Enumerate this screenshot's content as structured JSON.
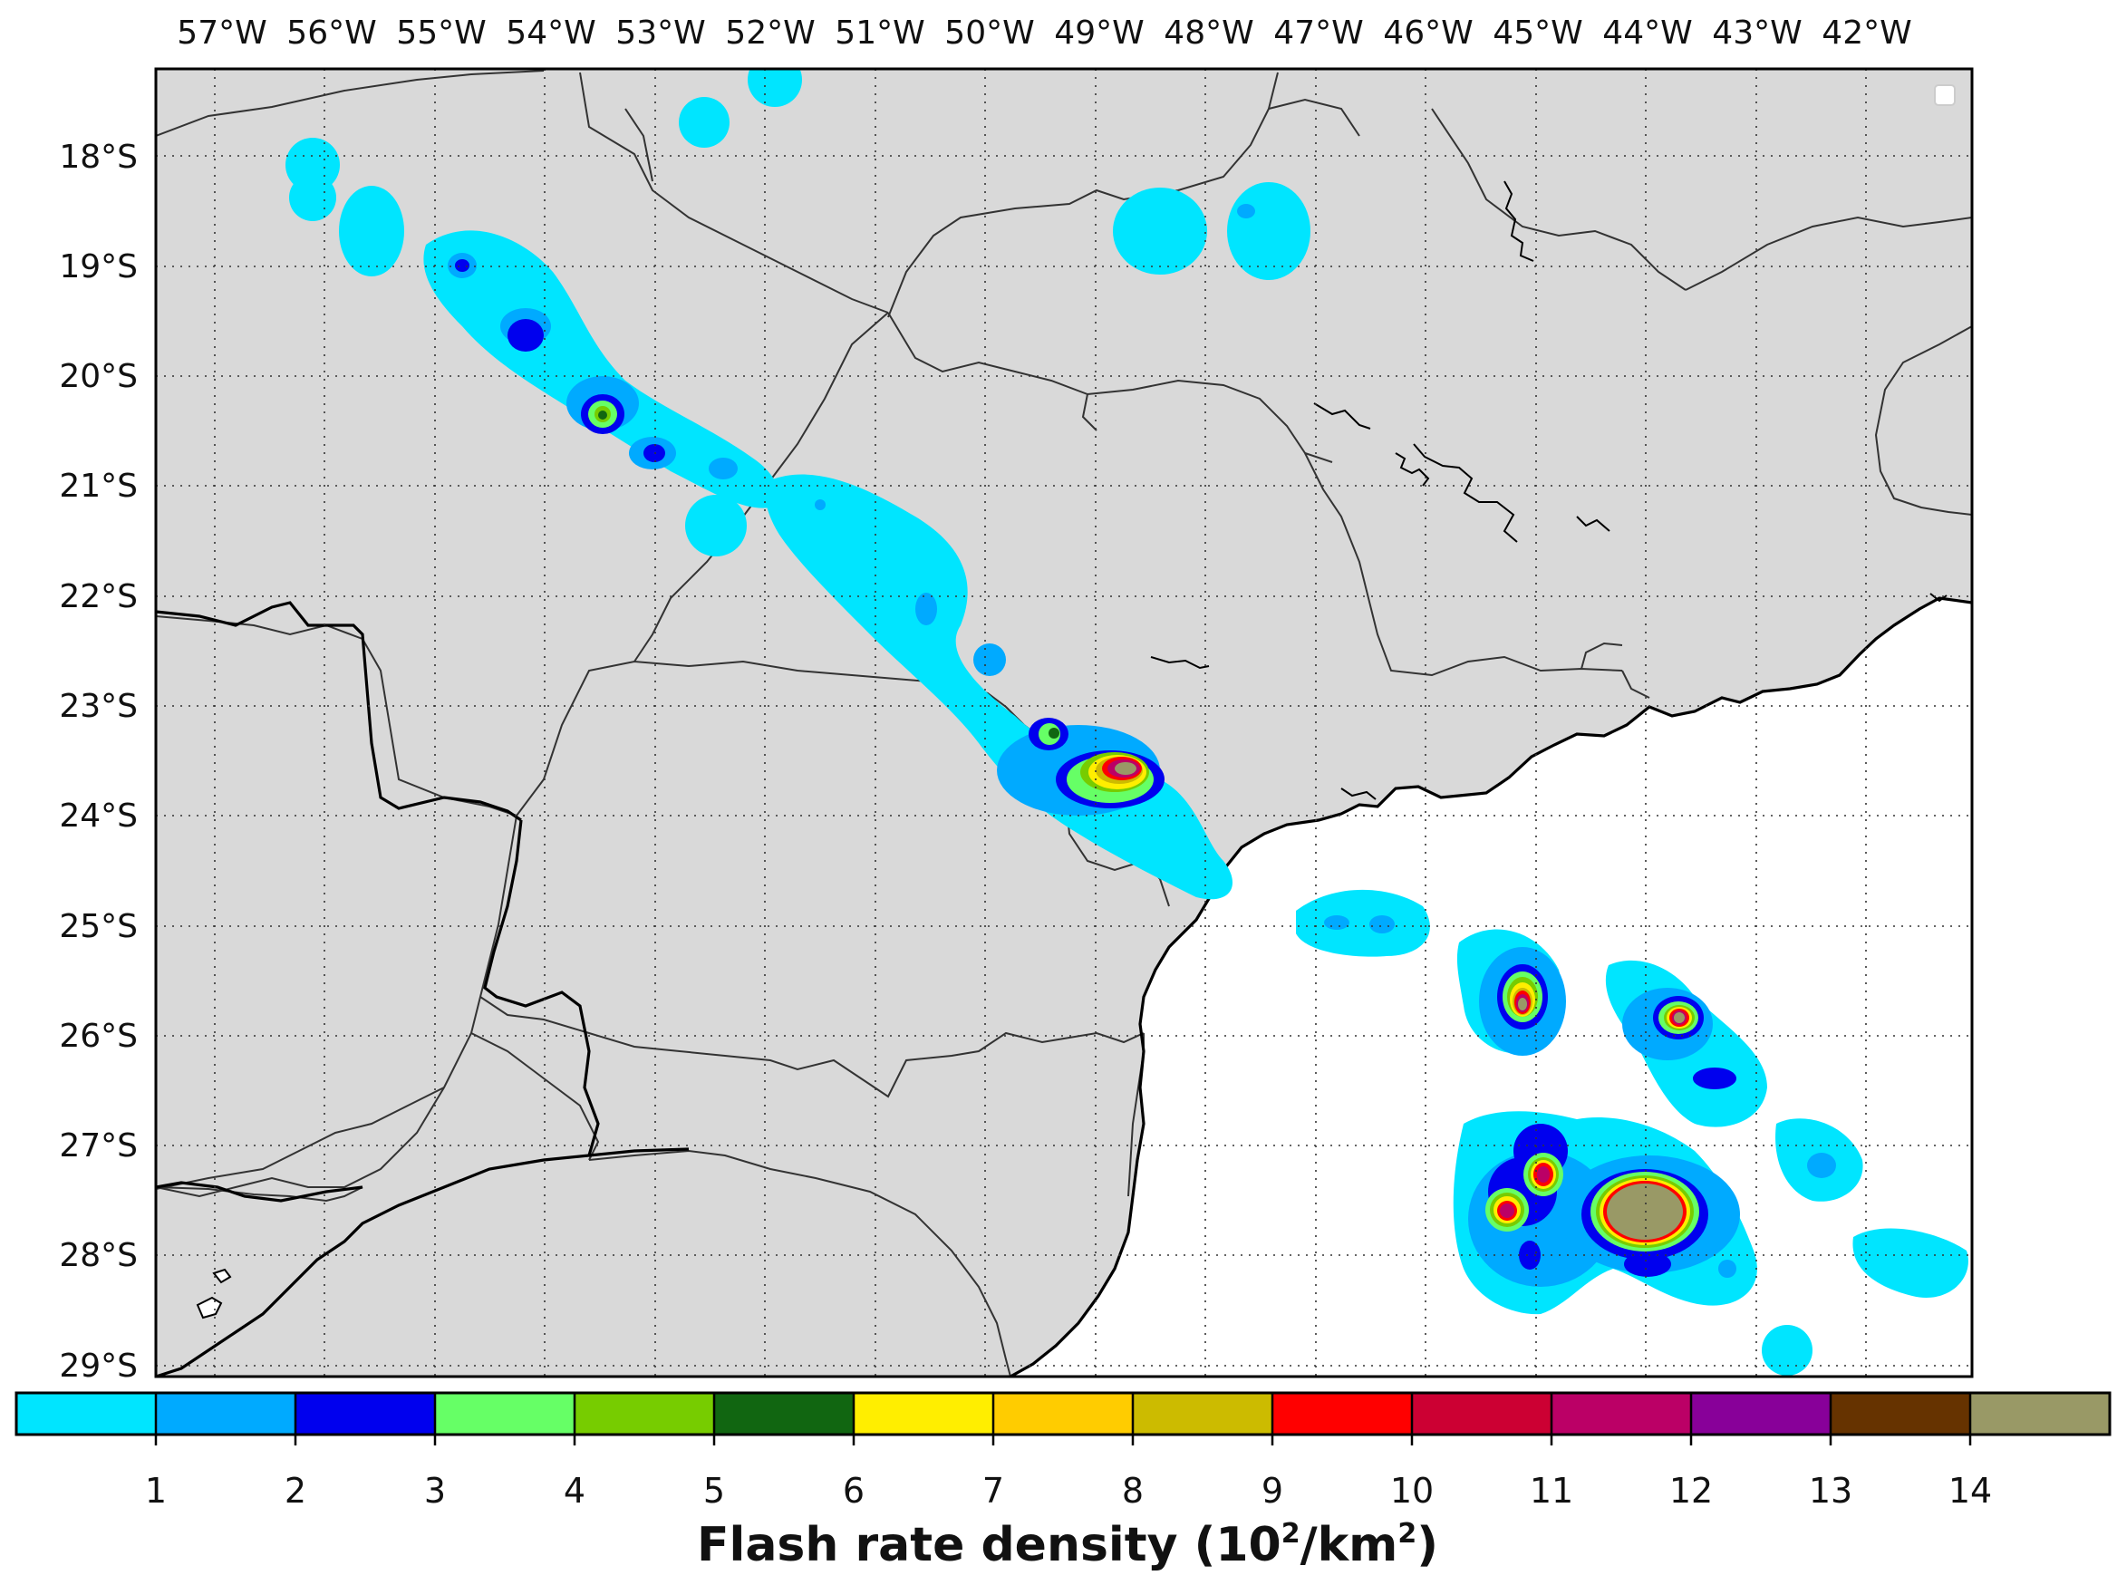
{
  "map": {
    "lon_labels": [
      "57°W",
      "56°W",
      "55°W",
      "54°W",
      "53°W",
      "52°W",
      "51°W",
      "50°W",
      "49°W",
      "48°W",
      "47°W",
      "46°W",
      "45°W",
      "44°W",
      "43°W",
      "42°W"
    ],
    "lat_labels": [
      "18°S",
      "19°S",
      "20°S",
      "21°S",
      "22°S",
      "23°S",
      "24°S",
      "25°S",
      "26°S",
      "27°S",
      "28°S",
      "29°S"
    ],
    "extent": {
      "lon_min": -58.25,
      "lon_max": -41.75,
      "lat_min": -29.1,
      "lat_max": -17.25
    },
    "land_color": "#d9d9d9",
    "ocean_color": "#ffffff"
  },
  "colorbar": {
    "title_main": "Flash rate density (10",
    "title_sup1": "2",
    "title_mid": "/km",
    "title_sup2": "2",
    "title_end": ")",
    "tick_labels": [
      "1",
      "2",
      "3",
      "4",
      "5",
      "6",
      "7",
      "8",
      "9",
      "10",
      "11",
      "12",
      "13",
      "14"
    ],
    "colors": [
      "#00e5ff",
      "#00aaff",
      "#0000ee",
      "#66ff66",
      "#77cc00",
      "#116611",
      "#ffee00",
      "#ffcc00",
      "#ccbb00",
      "#ff0000",
      "#cc0033",
      "#bb0066",
      "#880099",
      "#663300",
      "#999966"
    ]
  },
  "cells": [
    {
      "name": "nw-band",
      "max": 4.5
    },
    {
      "name": "parana-core",
      "max": 13.2
    },
    {
      "name": "ocean-cell-a",
      "max": 12.4
    },
    {
      "name": "ocean-cell-b",
      "max": 13.6
    },
    {
      "name": "ocean-cell-c",
      "max": 11.8
    },
    {
      "name": "ocean-cell-d",
      "max": 14.4
    }
  ]
}
